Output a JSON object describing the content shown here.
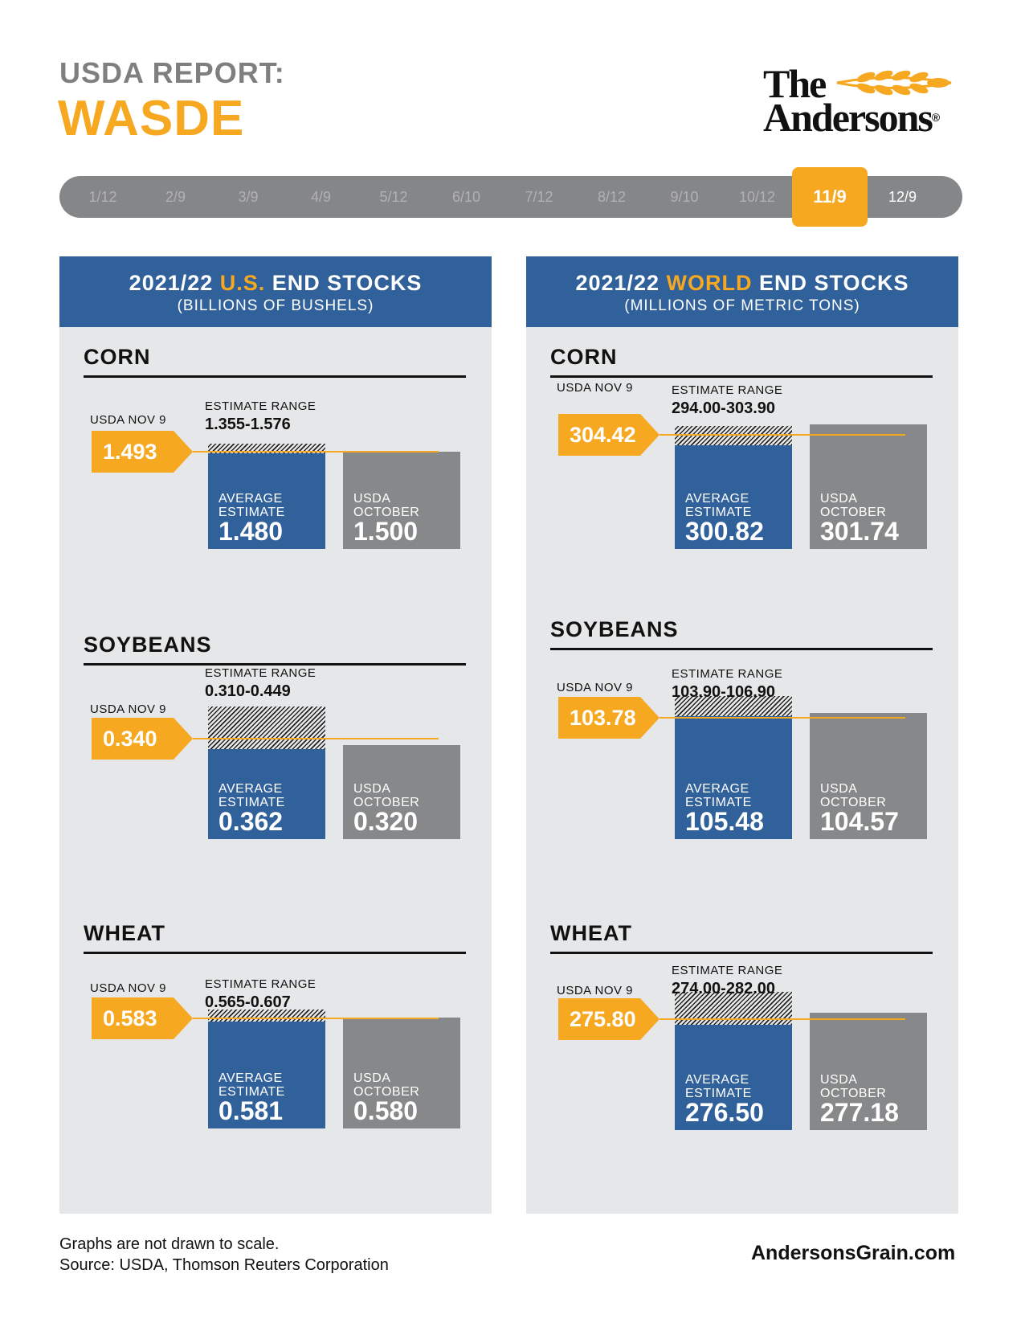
{
  "header": {
    "line1": "USDA REPORT:",
    "line2": "WASDE"
  },
  "logo": {
    "line1": "The",
    "line2": "Andersons",
    "reg_mark": "®"
  },
  "timeline": {
    "items": [
      "1/12",
      "2/9",
      "3/9",
      "4/9",
      "5/12",
      "6/10",
      "7/12",
      "8/12",
      "9/10",
      "10/12",
      "11/9",
      "12/9"
    ],
    "active": "11/9"
  },
  "panels": [
    {
      "title_pre": "2021/22 ",
      "title_hl": "U.S.",
      "title_post": " END STOCKS",
      "subtitle": "(BILLIONS OF BUSHELS)"
    },
    {
      "title_pre": "2021/22 ",
      "title_hl": "WORLD",
      "title_post": " END STOCKS",
      "subtitle": "(MILLIONS OF METRIC TONS)"
    }
  ],
  "labels": {
    "usda_nov": "USDA NOV 9",
    "estimate_range": "ESTIMATE RANGE",
    "average_estimate_1": "AVERAGE",
    "average_estimate_2": "ESTIMATE",
    "usda_october_1": "USDA",
    "usda_october_2": "OCTOBER"
  },
  "colors": {
    "accent": "#f6a821",
    "blue": "#31619a",
    "gray_bar": "#878889",
    "panel_bg": "#e6e7e8"
  },
  "chart_data": [
    {
      "type": "bar",
      "panel": "U.S.",
      "commodity": "CORN",
      "usda_nov_9": "1.493",
      "estimate_range": "1.355-1.576",
      "average_estimate": "1.480",
      "usda_october": "1.500"
    },
    {
      "type": "bar",
      "panel": "U.S.",
      "commodity": "SOYBEANS",
      "usda_nov_9": "0.340",
      "estimate_range": "0.310-0.449",
      "average_estimate": "0.362",
      "usda_october": "0.320"
    },
    {
      "type": "bar",
      "panel": "U.S.",
      "commodity": "WHEAT",
      "usda_nov_9": "0.583",
      "estimate_range": "0.565-0.607",
      "average_estimate": "0.581",
      "usda_october": "0.580"
    },
    {
      "type": "bar",
      "panel": "WORLD",
      "commodity": "CORN",
      "usda_nov_9": "304.42",
      "estimate_range": "294.00-303.90",
      "average_estimate": "300.82",
      "usda_october": "301.74"
    },
    {
      "type": "bar",
      "panel": "WORLD",
      "commodity": "SOYBEANS",
      "usda_nov_9": "103.78",
      "estimate_range": "103.90-106.90",
      "average_estimate": "105.48",
      "usda_october": "104.57"
    },
    {
      "type": "bar",
      "panel": "WORLD",
      "commodity": "WHEAT",
      "usda_nov_9": "275.80",
      "estimate_range": "274.00-282.00",
      "average_estimate": "276.50",
      "usda_october": "277.18"
    }
  ],
  "footer": {
    "note": "Graphs are not drawn to scale.",
    "source": "Source: USDA, Thomson Reuters Corporation",
    "website": "AndersonsGrain.com"
  }
}
